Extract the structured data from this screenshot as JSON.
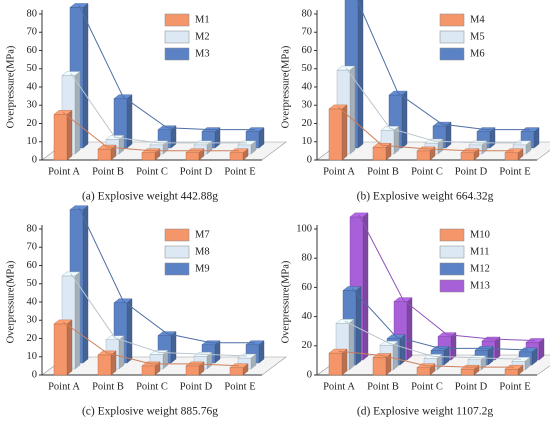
{
  "chart_data": [
    {
      "type": "bar",
      "caption": "(a) Explosive weight 442.88g",
      "ylabel": "Overpressure(MPa)",
      "categories": [
        "Point A",
        "Point B",
        "Point C",
        "Point D",
        "Point E"
      ],
      "ylim": [
        0,
        80
      ],
      "yticks": [
        0,
        10,
        20,
        30,
        40,
        50,
        60,
        70,
        80
      ],
      "series": [
        {
          "name": "M1",
          "color": "#f4956a",
          "values": [
            25,
            6,
            4,
            4,
            4
          ]
        },
        {
          "name": "M2",
          "color": "#dce9f5",
          "values": [
            43,
            8,
            5,
            5,
            5
          ]
        },
        {
          "name": "M3",
          "color": "#5b82c4",
          "values": [
            77,
            27,
            10,
            9,
            9
          ]
        }
      ]
    },
    {
      "type": "bar",
      "caption": "(b) Explosive weight 664.32g",
      "ylabel": "Overpressure(MPa)",
      "categories": [
        "Point A",
        "Point B",
        "Point C",
        "Point D",
        "Point E"
      ],
      "ylim": [
        0,
        80
      ],
      "yticks": [
        0,
        10,
        20,
        30,
        40,
        50,
        60,
        70,
        80
      ],
      "series": [
        {
          "name": "M4",
          "color": "#f4956a",
          "values": [
            28,
            7,
            5,
            4,
            4
          ]
        },
        {
          "name": "M5",
          "color": "#dce9f5",
          "values": [
            46,
            13,
            6,
            5,
            5
          ]
        },
        {
          "name": "M6",
          "color": "#5b82c4",
          "values": [
            84,
            29,
            12,
            9,
            9
          ]
        }
      ]
    },
    {
      "type": "bar",
      "caption": "(c) Explosive weight 885.76g",
      "ylabel": "Overpressure(MPa)",
      "categories": [
        "Point A",
        "Point B",
        "Point C",
        "Point D",
        "Point E"
      ],
      "ylim": [
        0,
        80
      ],
      "yticks": [
        0,
        10,
        20,
        30,
        40,
        50,
        60,
        70,
        80
      ],
      "series": [
        {
          "name": "M7",
          "color": "#f4956a",
          "values": [
            28,
            11,
            5,
            5,
            4
          ]
        },
        {
          "name": "M8",
          "color": "#dce9f5",
          "values": [
            51,
            16,
            8,
            7,
            6
          ]
        },
        {
          "name": "M9",
          "color": "#5b82c4",
          "values": [
            84,
            33,
            15,
            10,
            10
          ]
        }
      ]
    },
    {
      "type": "bar",
      "caption": "(d) Explosive weight 1107.2g",
      "ylabel": "Overpressure(MPa)",
      "categories": [
        "Point A",
        "Point B",
        "Point C",
        "Point D",
        "Point E"
      ],
      "ylim": [
        0,
        100
      ],
      "yticks": [
        0,
        20,
        40,
        60,
        80,
        100
      ],
      "series": [
        {
          "name": "M10",
          "color": "#f4956a",
          "values": [
            15,
            12,
            5,
            4,
            4
          ]
        },
        {
          "name": "M11",
          "color": "#dce9f5",
          "values": [
            32,
            17,
            8,
            7,
            6
          ]
        },
        {
          "name": "M12",
          "color": "#5b82c4",
          "values": [
            51,
            18,
            10,
            10,
            9
          ]
        },
        {
          "name": "M13",
          "color": "#a860d8",
          "values": [
            98,
            40,
            16,
            13,
            12
          ]
        }
      ]
    }
  ]
}
